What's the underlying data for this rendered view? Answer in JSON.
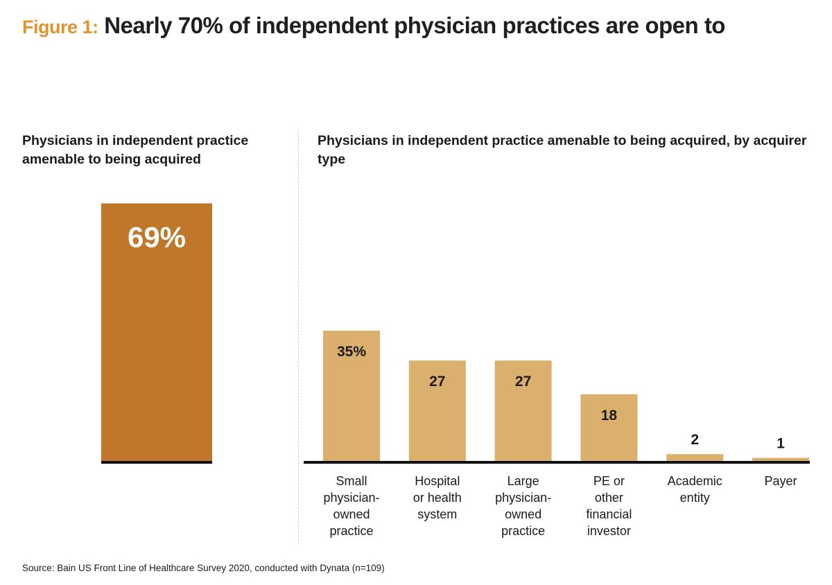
{
  "title": {
    "lead": "Figure 1:",
    "main": "Nearly 70% of independent physician practices are open to"
  },
  "colors": {
    "lead": "#e0932f",
    "total_bar": "#c0772a",
    "category_bar": "#dbb06e",
    "baseline": "#111111"
  },
  "chart_data": [
    {
      "type": "bar",
      "title": "Physicians in independent practice amenable to being acquired",
      "categories": [
        ""
      ],
      "values": [
        69
      ],
      "labels": [
        "69%"
      ],
      "ylim": [
        0,
        100
      ]
    },
    {
      "type": "bar",
      "title": "Physicians in independent practice amenable to being acquired, by acquirer type",
      "categories": [
        [
          "Small",
          "physician-",
          "owned",
          "practice"
        ],
        [
          "Hospital",
          "or health",
          "system"
        ],
        [
          "Large",
          "physician-",
          "owned",
          "practice"
        ],
        [
          "PE or",
          "other",
          "financial",
          "investor"
        ],
        [
          "Academic",
          "entity"
        ],
        [
          "Payer"
        ]
      ],
      "values": [
        35,
        27,
        27,
        18,
        2,
        1
      ],
      "labels": [
        "35%",
        "27",
        "27",
        "18",
        "2",
        "1"
      ],
      "ylim": [
        0,
        100
      ]
    }
  ],
  "source": "Source: Bain US Front Line of Healthcare Survey 2020, conducted with Dynata (n=109)"
}
